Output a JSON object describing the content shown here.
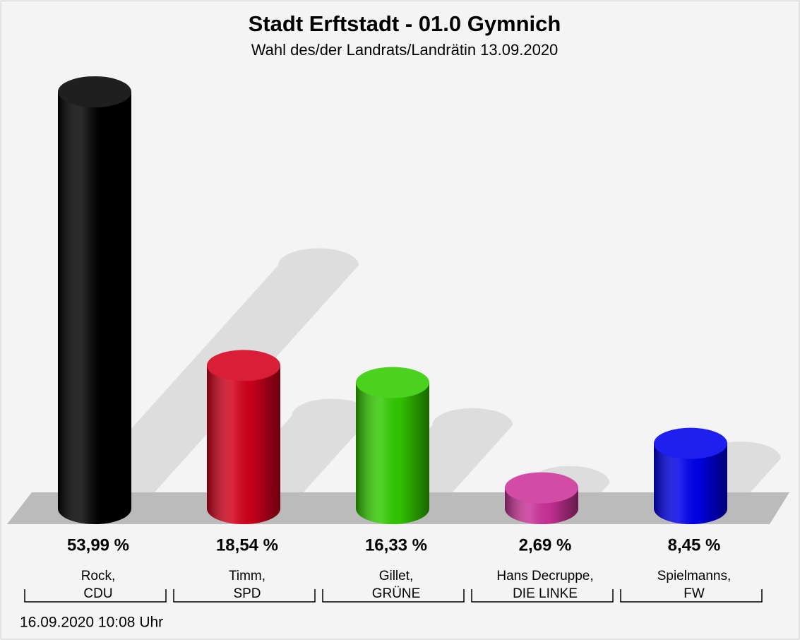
{
  "chart_data": {
    "type": "bar",
    "title": "Stadt Erftstadt - 01.0 Gymnich",
    "subtitle": "Wahl des/der Landrats/Landrätin 13.09.2020",
    "categories": [
      [
        "Rock,",
        "CDU"
      ],
      [
        "Timm,",
        "SPD"
      ],
      [
        "Gillet,",
        "GRÜNE"
      ],
      [
        "Hans Decruppe,",
        "DIE LINKE"
      ],
      [
        "Spielmanns,",
        "FW"
      ]
    ],
    "values": [
      53.99,
      18.54,
      16.33,
      2.69,
      8.45
    ],
    "value_labels": [
      "53,99 %",
      "18,54 %",
      "16,33 %",
      "2,69 %",
      "8,45 %"
    ],
    "colors": [
      "#000000",
      "#d4001c",
      "#33cc00",
      "#cc3399",
      "#0000ee"
    ],
    "footnote": "16.09.2020 10:08 Uhr"
  }
}
